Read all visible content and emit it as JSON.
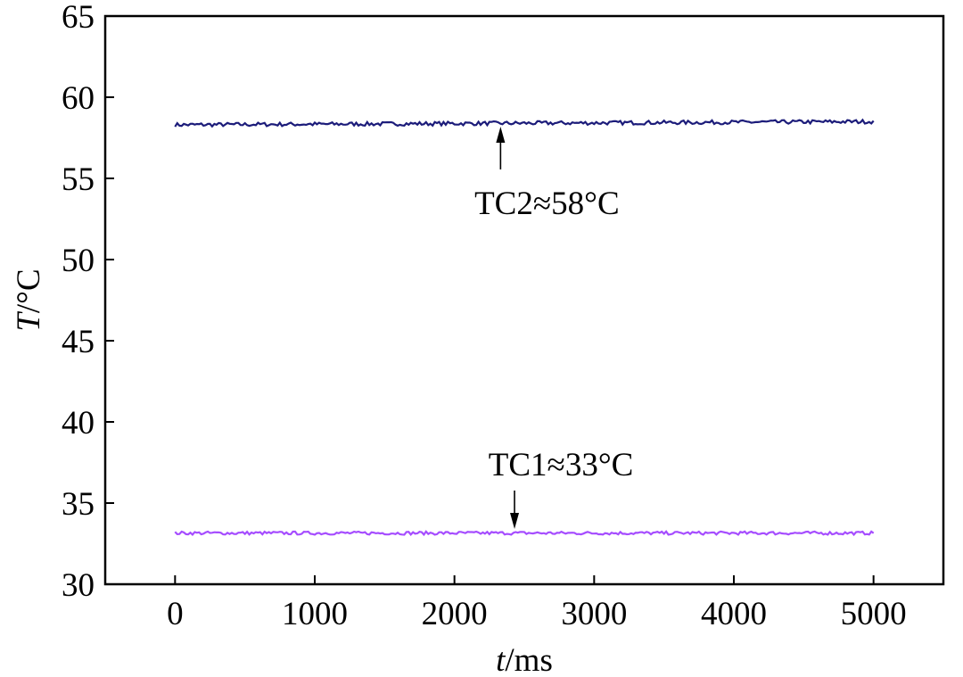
{
  "chart_data": {
    "type": "line",
    "title": "",
    "xlabel_italic": "t",
    "xlabel_unit": "/ms",
    "ylabel_italic": "T",
    "ylabel_unit": "/°C",
    "xlim": [
      -500,
      5500
    ],
    "ylim": [
      30,
      65
    ],
    "xticks": [
      0,
      1000,
      2000,
      3000,
      4000,
      5000
    ],
    "yticks": [
      30,
      35,
      40,
      45,
      50,
      55,
      60,
      65
    ],
    "grid": false,
    "series": [
      {
        "color": "#1c1c7a",
        "x": [
          0,
          5000
        ],
        "y": [
          58.3,
          58.5
        ],
        "mean": 58.4,
        "noise": 0.12
      },
      {
        "color": "#a64dff",
        "x": [
          0,
          5000
        ],
        "y": [
          33.15,
          33.15
        ],
        "mean": 33.15,
        "noise": 0.1
      }
    ],
    "annotations": [
      {
        "text": "TC2≈58°C",
        "arrow_to": [
          2330,
          58.3
        ],
        "direction": "up"
      },
      {
        "text": "TC1≈33°C",
        "arrow_to": [
          2430,
          33.3
        ],
        "direction": "down"
      }
    ]
  }
}
